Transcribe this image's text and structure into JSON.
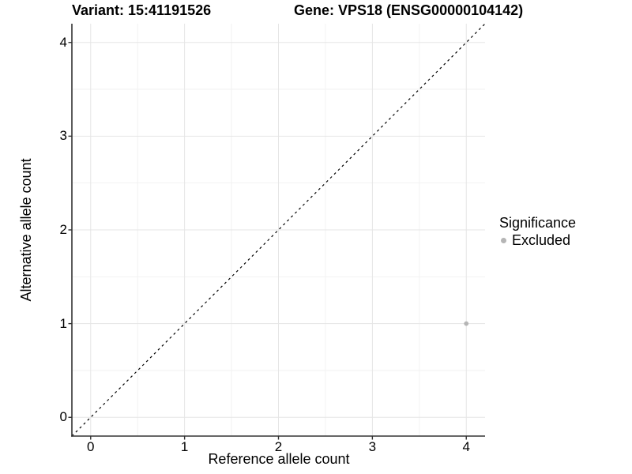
{
  "chart_data": {
    "type": "scatter",
    "titles": {
      "variant": "Variant: 15:41191526",
      "gene": "Gene: VPS18 (ENSG00000104142)"
    },
    "xlabel": "Reference allele count",
    "ylabel": "Alternative allele count",
    "xlim": [
      -0.2,
      4.2
    ],
    "ylim": [
      -0.2,
      4.2
    ],
    "x_ticks": [
      0,
      1,
      2,
      3,
      4
    ],
    "y_ticks": [
      0,
      1,
      2,
      3,
      4
    ],
    "x_minor_ticks": [
      0.5,
      1.5,
      2.5,
      3.5
    ],
    "y_minor_ticks": [
      0.5,
      1.5,
      2.5,
      3.5
    ],
    "grid": "major+minor",
    "legend": {
      "title": "Significance",
      "position": "right",
      "entries": [
        {
          "label": "Excluded",
          "color": "#b5b5b5"
        }
      ]
    },
    "series": [
      {
        "name": "Excluded",
        "color": "#b5b5b5",
        "points": [
          [
            4,
            1
          ]
        ]
      }
    ],
    "identity_line": {
      "slope": 1,
      "intercept": 0,
      "style": "dashed",
      "color": "#000000"
    }
  },
  "colors": {
    "background": "#ffffff",
    "grid_major": "#e5e5e5",
    "grid_minor": "#f2f2f2",
    "axis_line": "#333333",
    "text": "#000000"
  }
}
